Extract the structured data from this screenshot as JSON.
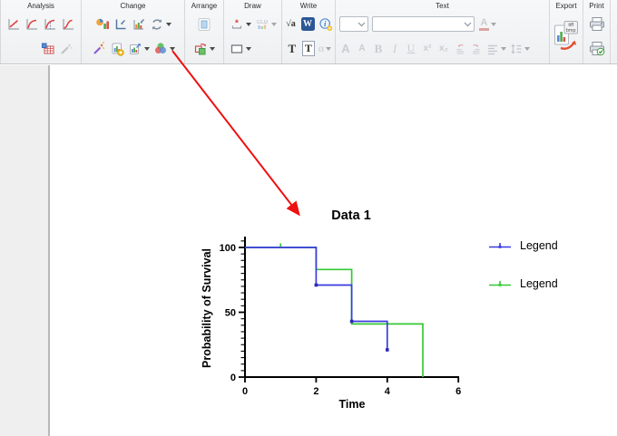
{
  "toolbar": {
    "analysis": {
      "label": "Analysis"
    },
    "change": {
      "label": "Change"
    },
    "arrange": {
      "label": "Arrange"
    },
    "draw": {
      "label": "Draw"
    },
    "write": {
      "label": "Write"
    },
    "text": {
      "label": "Text"
    },
    "export": {
      "label": "Export"
    },
    "print": {
      "label": "Print"
    },
    "glyphs": {
      "asterisk": "*",
      "cld": "CLD",
      "sqrt_a": "√a",
      "word": "W",
      "info": "i",
      "text_t": "T",
      "textbox_t": "T",
      "alpha": "α",
      "font_color": "A",
      "grow_font": "A",
      "shrink_font": "A",
      "bold": "B",
      "italic": "I",
      "underline": "U",
      "superscript": "x²",
      "subscript": "x₂",
      "export_badge_1": "tiff",
      "export_badge_2": "bmp"
    }
  },
  "chart_data": {
    "type": "line",
    "subtype": "kaplan-meier-survival-steps",
    "title": "Data 1",
    "xlabel": "Time",
    "ylabel": "Probability of Survival",
    "xlim": [
      0,
      6
    ],
    "ylim": [
      0,
      100
    ],
    "xticks": [
      0,
      2,
      4,
      6
    ],
    "yticks": [
      0,
      50,
      100
    ],
    "y_minor_tick_step": 5,
    "grid": false,
    "legend_position": "right",
    "series": [
      {
        "name": "Legend",
        "color": "#3b3be0",
        "marker_color": "#2a2ab8",
        "steps": [
          [
            0,
            100
          ],
          [
            2,
            100
          ],
          [
            2,
            71
          ],
          [
            3,
            71
          ],
          [
            3,
            43
          ],
          [
            4,
            43
          ],
          [
            4,
            21
          ]
        ],
        "markers": [
          [
            2,
            71
          ],
          [
            3,
            43
          ],
          [
            4,
            21
          ]
        ],
        "censor_ticks": []
      },
      {
        "name": "Legend",
        "color": "#35c935",
        "marker_color": "#2aa82a",
        "steps": [
          [
            0,
            100
          ],
          [
            2,
            100
          ],
          [
            2,
            83
          ],
          [
            3,
            83
          ],
          [
            3,
            41
          ],
          [
            5,
            41
          ],
          [
            5,
            0
          ]
        ],
        "markers": [],
        "censor_ticks": [
          [
            1,
            100
          ]
        ]
      }
    ]
  },
  "legend": {
    "items": [
      {
        "label": "Legend",
        "color": "#3b3be0"
      },
      {
        "label": "Legend",
        "color": "#35c935"
      }
    ]
  },
  "annotation": {
    "arrow_color": "#ee1111"
  }
}
